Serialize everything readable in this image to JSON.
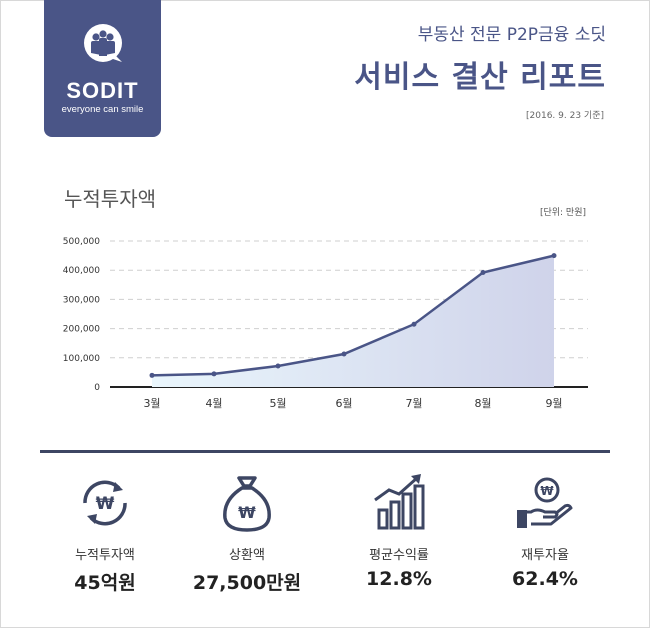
{
  "brand": {
    "name": "SODIT",
    "tagline": "everyone can smile",
    "color": "#4a5587"
  },
  "header": {
    "subtitle": "부동산 전문 P2P금융 소딧",
    "title": "서비스 결산 리포트",
    "date": "[2016. 9. 23 기준]"
  },
  "chart_section": {
    "title": "누적투자액",
    "unit": "[단위: 만원]"
  },
  "chart_data": {
    "type": "area",
    "title": "누적투자액",
    "categories": [
      "3월",
      "4월",
      "5월",
      "6월",
      "7월",
      "8월",
      "9월"
    ],
    "values": [
      40000,
      45000,
      72000,
      113000,
      215000,
      392000,
      450000
    ],
    "y_ticks": [
      "0",
      "100,000",
      "200,000",
      "300,000",
      "400,000",
      "500,000"
    ],
    "ylim": [
      0,
      500000
    ],
    "grid": true,
    "line_color": "#4a5587",
    "fill_colors": [
      "#eaf6fc",
      "#cfd3ea"
    ]
  },
  "stats": [
    {
      "label": "누적투자액",
      "value": "45억원",
      "icon": "won-cycle-icon"
    },
    {
      "label": "상환액",
      "value": "27,500만원",
      "icon": "money-bag-icon"
    },
    {
      "label": "평균수익률",
      "value": "12.8%",
      "icon": "growth-chart-icon"
    },
    {
      "label": "재투자율",
      "value": "62.4%",
      "icon": "coin-hand-icon"
    }
  ]
}
